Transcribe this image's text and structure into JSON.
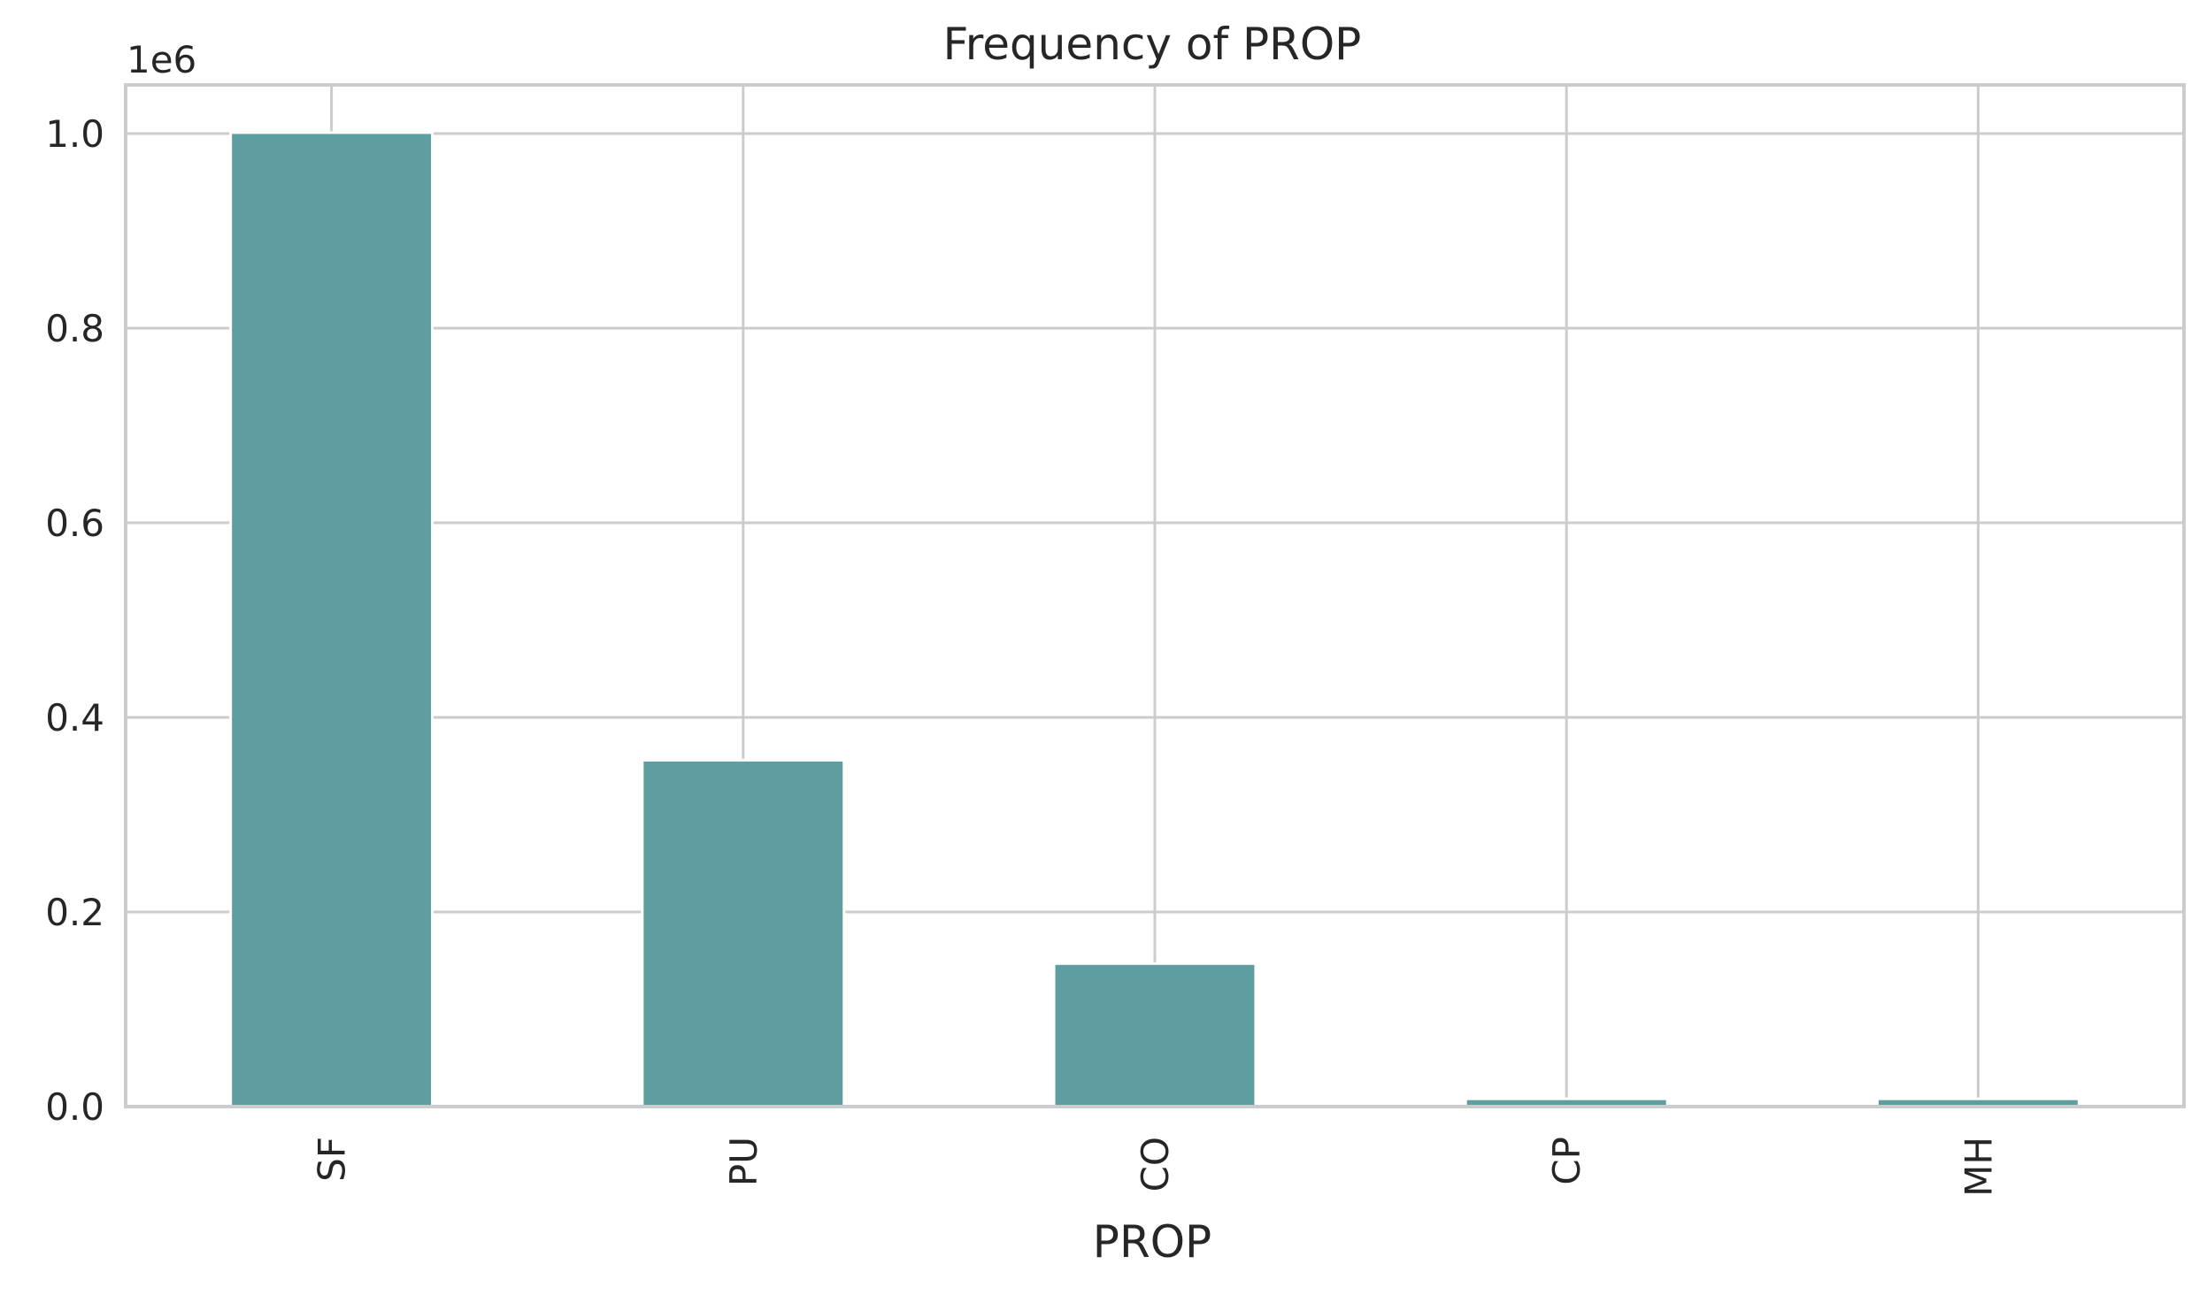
{
  "chart_data": {
    "type": "bar",
    "title": "Frequency of PROP",
    "xlabel": "PROP",
    "ylabel": "",
    "categories": [
      "SF",
      "PU",
      "CO",
      "CP",
      "MH"
    ],
    "values": [
      1001000,
      356000,
      147000,
      8000,
      8000
    ],
    "ylim": [
      0,
      1050000
    ],
    "yticks": [
      0,
      200000,
      400000,
      600000,
      800000,
      1000000
    ],
    "ytick_labels": [
      "0.0",
      "0.2",
      "0.4",
      "0.6",
      "0.8",
      "1.0"
    ],
    "offset_label": "1e6",
    "grid": true,
    "bar_color": "#5f9ea0",
    "grid_color": "#cccccc",
    "spine_color": "#cccccc",
    "text_color": "#262626"
  }
}
